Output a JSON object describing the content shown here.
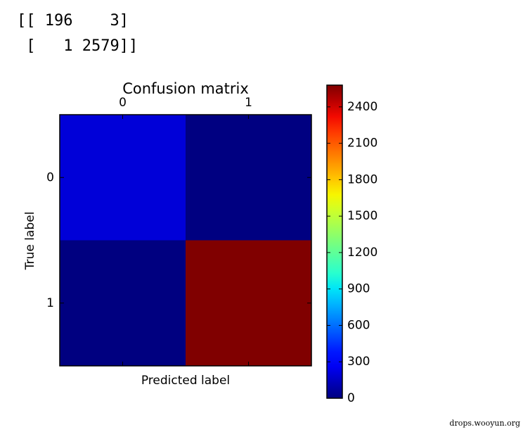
{
  "console": [
    "[[ 196    3]",
    " [   1 2579]]"
  ],
  "chart_data": {
    "type": "heatmap",
    "title": "Confusion matrix",
    "x_label": "Predicted label",
    "y_label": "True label",
    "x_categories": [
      "0",
      "1"
    ],
    "y_categories": [
      "0",
      "1"
    ],
    "values": [
      [
        196,
        3
      ],
      [
        1,
        2579
      ]
    ],
    "colormap": "jet",
    "clim": [
      0,
      2579
    ],
    "cticks": [
      0,
      300,
      600,
      900,
      1200,
      1500,
      1800,
      2100,
      2400
    ]
  },
  "watermark": "drops.wooyun.org"
}
